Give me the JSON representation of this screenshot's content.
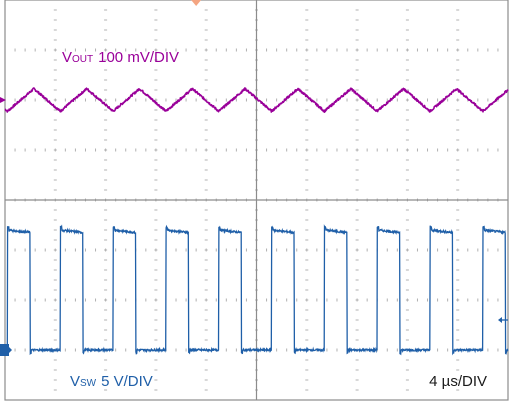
{
  "chart_data": {
    "type": "line",
    "grid": true,
    "screen": {
      "h_divisions": 10,
      "v_divisions": 8
    },
    "series": [
      {
        "name": "VOUT",
        "label_main": "V",
        "label_sub": "OUT",
        "label_scale": "100 mV/DIV",
        "color": "#990099",
        "waveform": "triangle",
        "period_us": 4.2,
        "peak_to_peak_mV": 45,
        "first_min_time_us": 0.2,
        "center_div": 6.0
      },
      {
        "name": "VSW",
        "label_main": "V",
        "label_sub": "SW",
        "label_scale": "5 V/DIV",
        "color": "#1f5fa8",
        "waveform": "square",
        "period_us": 4.2,
        "high_V": 12,
        "low_V": 0,
        "duty_cycle": 0.43,
        "first_rise_time_us": 0.2,
        "zero_div": 1.0
      }
    ],
    "time_scale": "4 µs/DIV",
    "markers": {
      "trigger_time_div": 3.8,
      "ch1_ref_level_div": 6.0,
      "ch2_ref_level_div": 1.0,
      "trigger_level_div": 1.6
    }
  }
}
